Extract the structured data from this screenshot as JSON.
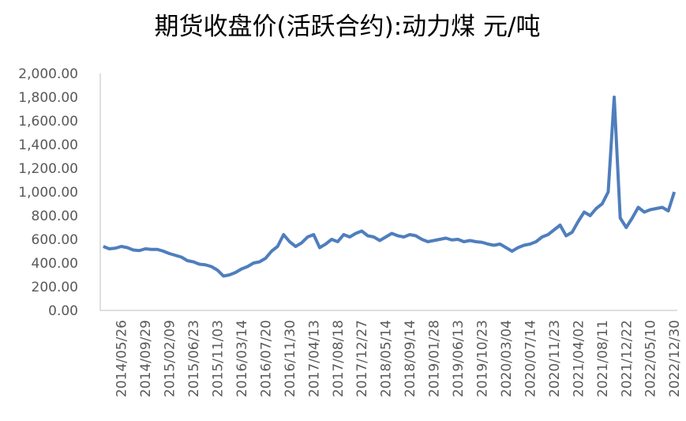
{
  "chart_data": {
    "type": "line",
    "title": "期货收盘价(活跃合约):动力煤 元/吨",
    "categories": [
      null,
      null,
      null,
      "2014/05/26",
      null,
      null,
      null,
      "2014/09/29",
      null,
      null,
      null,
      "2015/02/09",
      null,
      null,
      null,
      "2015/06/23",
      null,
      null,
      null,
      "2015/11/03",
      null,
      null,
      null,
      "2016/03/14",
      null,
      null,
      null,
      "2016/07/20",
      null,
      null,
      null,
      "2016/11/30",
      null,
      null,
      null,
      "2017/04/13",
      null,
      null,
      null,
      "2017/08/18",
      null,
      null,
      null,
      "2017/12/27",
      null,
      null,
      null,
      "2018/05/14",
      null,
      null,
      null,
      "2018/09/14",
      null,
      null,
      null,
      "2019/01/28",
      null,
      null,
      null,
      "2019/06/13",
      null,
      null,
      null,
      "2019/10/23",
      null,
      null,
      null,
      "2020/03/04",
      null,
      null,
      null,
      "2020/07/14",
      null,
      null,
      null,
      "2020/11/23",
      null,
      null,
      null,
      "2021/04/02",
      null,
      null,
      null,
      "2021/08/11",
      null,
      null,
      null,
      "2021/12/22",
      null,
      null,
      null,
      "2022/05/10",
      null,
      null,
      null,
      "2022/12/30"
    ],
    "series": [
      {
        "color": "#4f7ebd",
        "values": [
          540,
          520,
          525,
          540,
          530,
          510,
          505,
          520,
          515,
          515,
          500,
          480,
          465,
          450,
          420,
          410,
          390,
          385,
          370,
          340,
          290,
          300,
          320,
          350,
          370,
          400,
          410,
          440,
          500,
          540,
          640,
          580,
          540,
          570,
          620,
          640,
          530,
          560,
          600,
          580,
          640,
          620,
          650,
          670,
          630,
          620,
          590,
          620,
          650,
          630,
          620,
          640,
          630,
          600,
          580,
          590,
          600,
          610,
          595,
          600,
          580,
          590,
          580,
          575,
          560,
          550,
          560,
          530,
          500,
          530,
          550,
          560,
          580,
          620,
          640,
          680,
          720,
          630,
          660,
          750,
          830,
          800,
          860,
          900,
          1000,
          1800,
          780,
          700,
          780,
          870,
          830,
          850,
          860,
          870,
          840,
          1000
        ]
      }
    ],
    "ylim": [
      0,
      2000
    ],
    "yticks": [
      {
        "value": 0,
        "label": "0.00"
      },
      {
        "value": 200,
        "label": "200.00"
      },
      {
        "value": 400,
        "label": "400.00"
      },
      {
        "value": 600,
        "label": "600.00"
      },
      {
        "value": 800,
        "label": "800.00"
      },
      {
        "value": 1000,
        "label": "1,000.00"
      },
      {
        "value": 1200,
        "label": "1,200.00"
      },
      {
        "value": 1400,
        "label": "1,400.00"
      },
      {
        "value": 1600,
        "label": "1,600.00"
      },
      {
        "value": 1800,
        "label": "1,800.00"
      },
      {
        "value": 2000,
        "label": "2,000.00"
      }
    ]
  }
}
